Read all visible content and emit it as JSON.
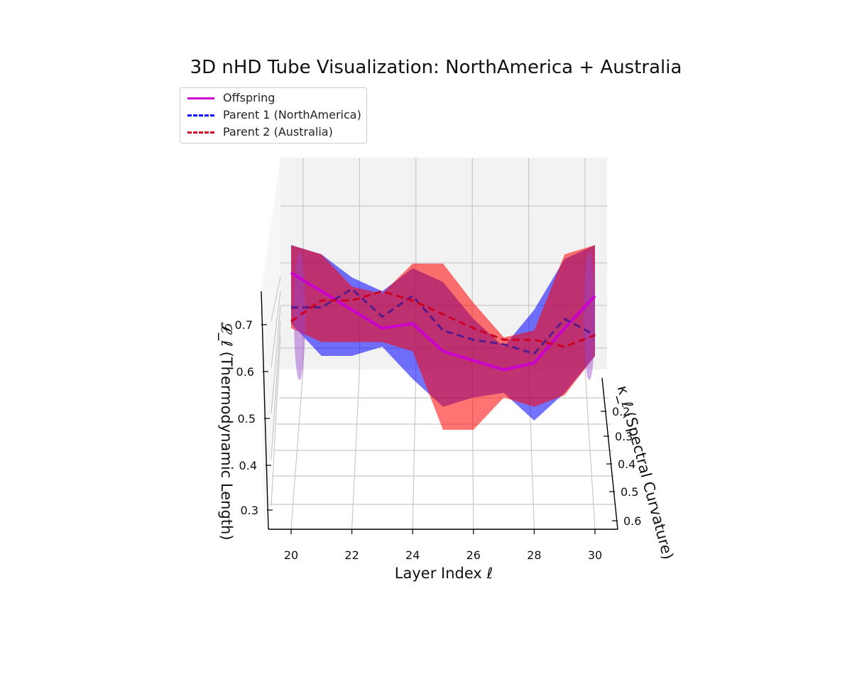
{
  "chart_data": {
    "type": "line",
    "title": "3D nHD Tube Visualization: NorthAmerica + Australia",
    "xlabel": "Layer Index ℓ",
    "ylabel": "κ_ℓ (Spectral Curvature)",
    "zlabel": "𝓛_ℓ (Thermodynamic Length)",
    "x_ticks": [
      "20",
      "22",
      "24",
      "26",
      "28",
      "30"
    ],
    "y_ticks": [
      "0.2",
      "0.3",
      "0.4",
      "0.5",
      "0.6"
    ],
    "z_ticks": [
      "0.3",
      "0.4",
      "0.5",
      "0.6",
      "0.7"
    ],
    "xlim": [
      19.5,
      30.5
    ],
    "zlim": [
      0.25,
      0.82
    ],
    "grid": true,
    "legend_position": "top-left",
    "series": [
      {
        "name": "Offspring",
        "color": "#cc00cc",
        "linestyle": "solid",
        "x": [
          20,
          21,
          22,
          23,
          24,
          25,
          26,
          27,
          28,
          29,
          30
        ],
        "y": [
          0.4,
          0.4,
          0.4,
          0.4,
          0.4,
          0.4,
          0.4,
          0.4,
          0.4,
          0.4,
          0.4
        ],
        "z": [
          0.78,
          0.74,
          0.7,
          0.66,
          0.67,
          0.61,
          0.59,
          0.57,
          0.585,
          0.66,
          0.73
        ]
      },
      {
        "name": "Parent 1 (NorthAmerica)",
        "color": "#0000ff",
        "linestyle": "dashed",
        "x": [
          20,
          21,
          22,
          23,
          24,
          25,
          26,
          27,
          28,
          29,
          30
        ],
        "y": [
          0.4,
          0.4,
          0.4,
          0.4,
          0.4,
          0.4,
          0.4,
          0.4,
          0.4,
          0.4,
          0.4
        ],
        "z": [
          0.705,
          0.705,
          0.745,
          0.685,
          0.73,
          0.655,
          0.635,
          0.625,
          0.605,
          0.68,
          0.645
        ]
      },
      {
        "name": "Parent 2 (Australia)",
        "color": "#cc0022",
        "linestyle": "dashed",
        "x": [
          20,
          21,
          22,
          23,
          24,
          25,
          26,
          27,
          28,
          29,
          30
        ],
        "y": [
          0.4,
          0.4,
          0.4,
          0.4,
          0.4,
          0.4,
          0.4,
          0.4,
          0.4,
          0.4,
          0.4
        ],
        "z": [
          0.675,
          0.72,
          0.72,
          0.74,
          0.72,
          0.69,
          0.66,
          0.635,
          0.635,
          0.62,
          0.645
        ]
      }
    ],
    "tubes": [
      {
        "name": "Parent 1 (NorthAmerica)",
        "color": "#0000ff",
        "upper": [
          0.84,
          0.82,
          0.77,
          0.74,
          0.79,
          0.76,
          0.68,
          0.62,
          0.7,
          0.81,
          0.84
        ],
        "lower": [
          0.67,
          0.6,
          0.6,
          0.62,
          0.55,
          0.49,
          0.51,
          0.52,
          0.46,
          0.52,
          0.6
        ]
      },
      {
        "name": "Parent 2 (Australia)",
        "color": "#ff0000",
        "upper": [
          0.84,
          0.82,
          0.75,
          0.735,
          0.8,
          0.8,
          0.715,
          0.64,
          0.655,
          0.82,
          0.84
        ],
        "lower": [
          0.66,
          0.63,
          0.63,
          0.63,
          0.61,
          0.44,
          0.44,
          0.51,
          0.49,
          0.515,
          0.6
        ]
      }
    ]
  }
}
